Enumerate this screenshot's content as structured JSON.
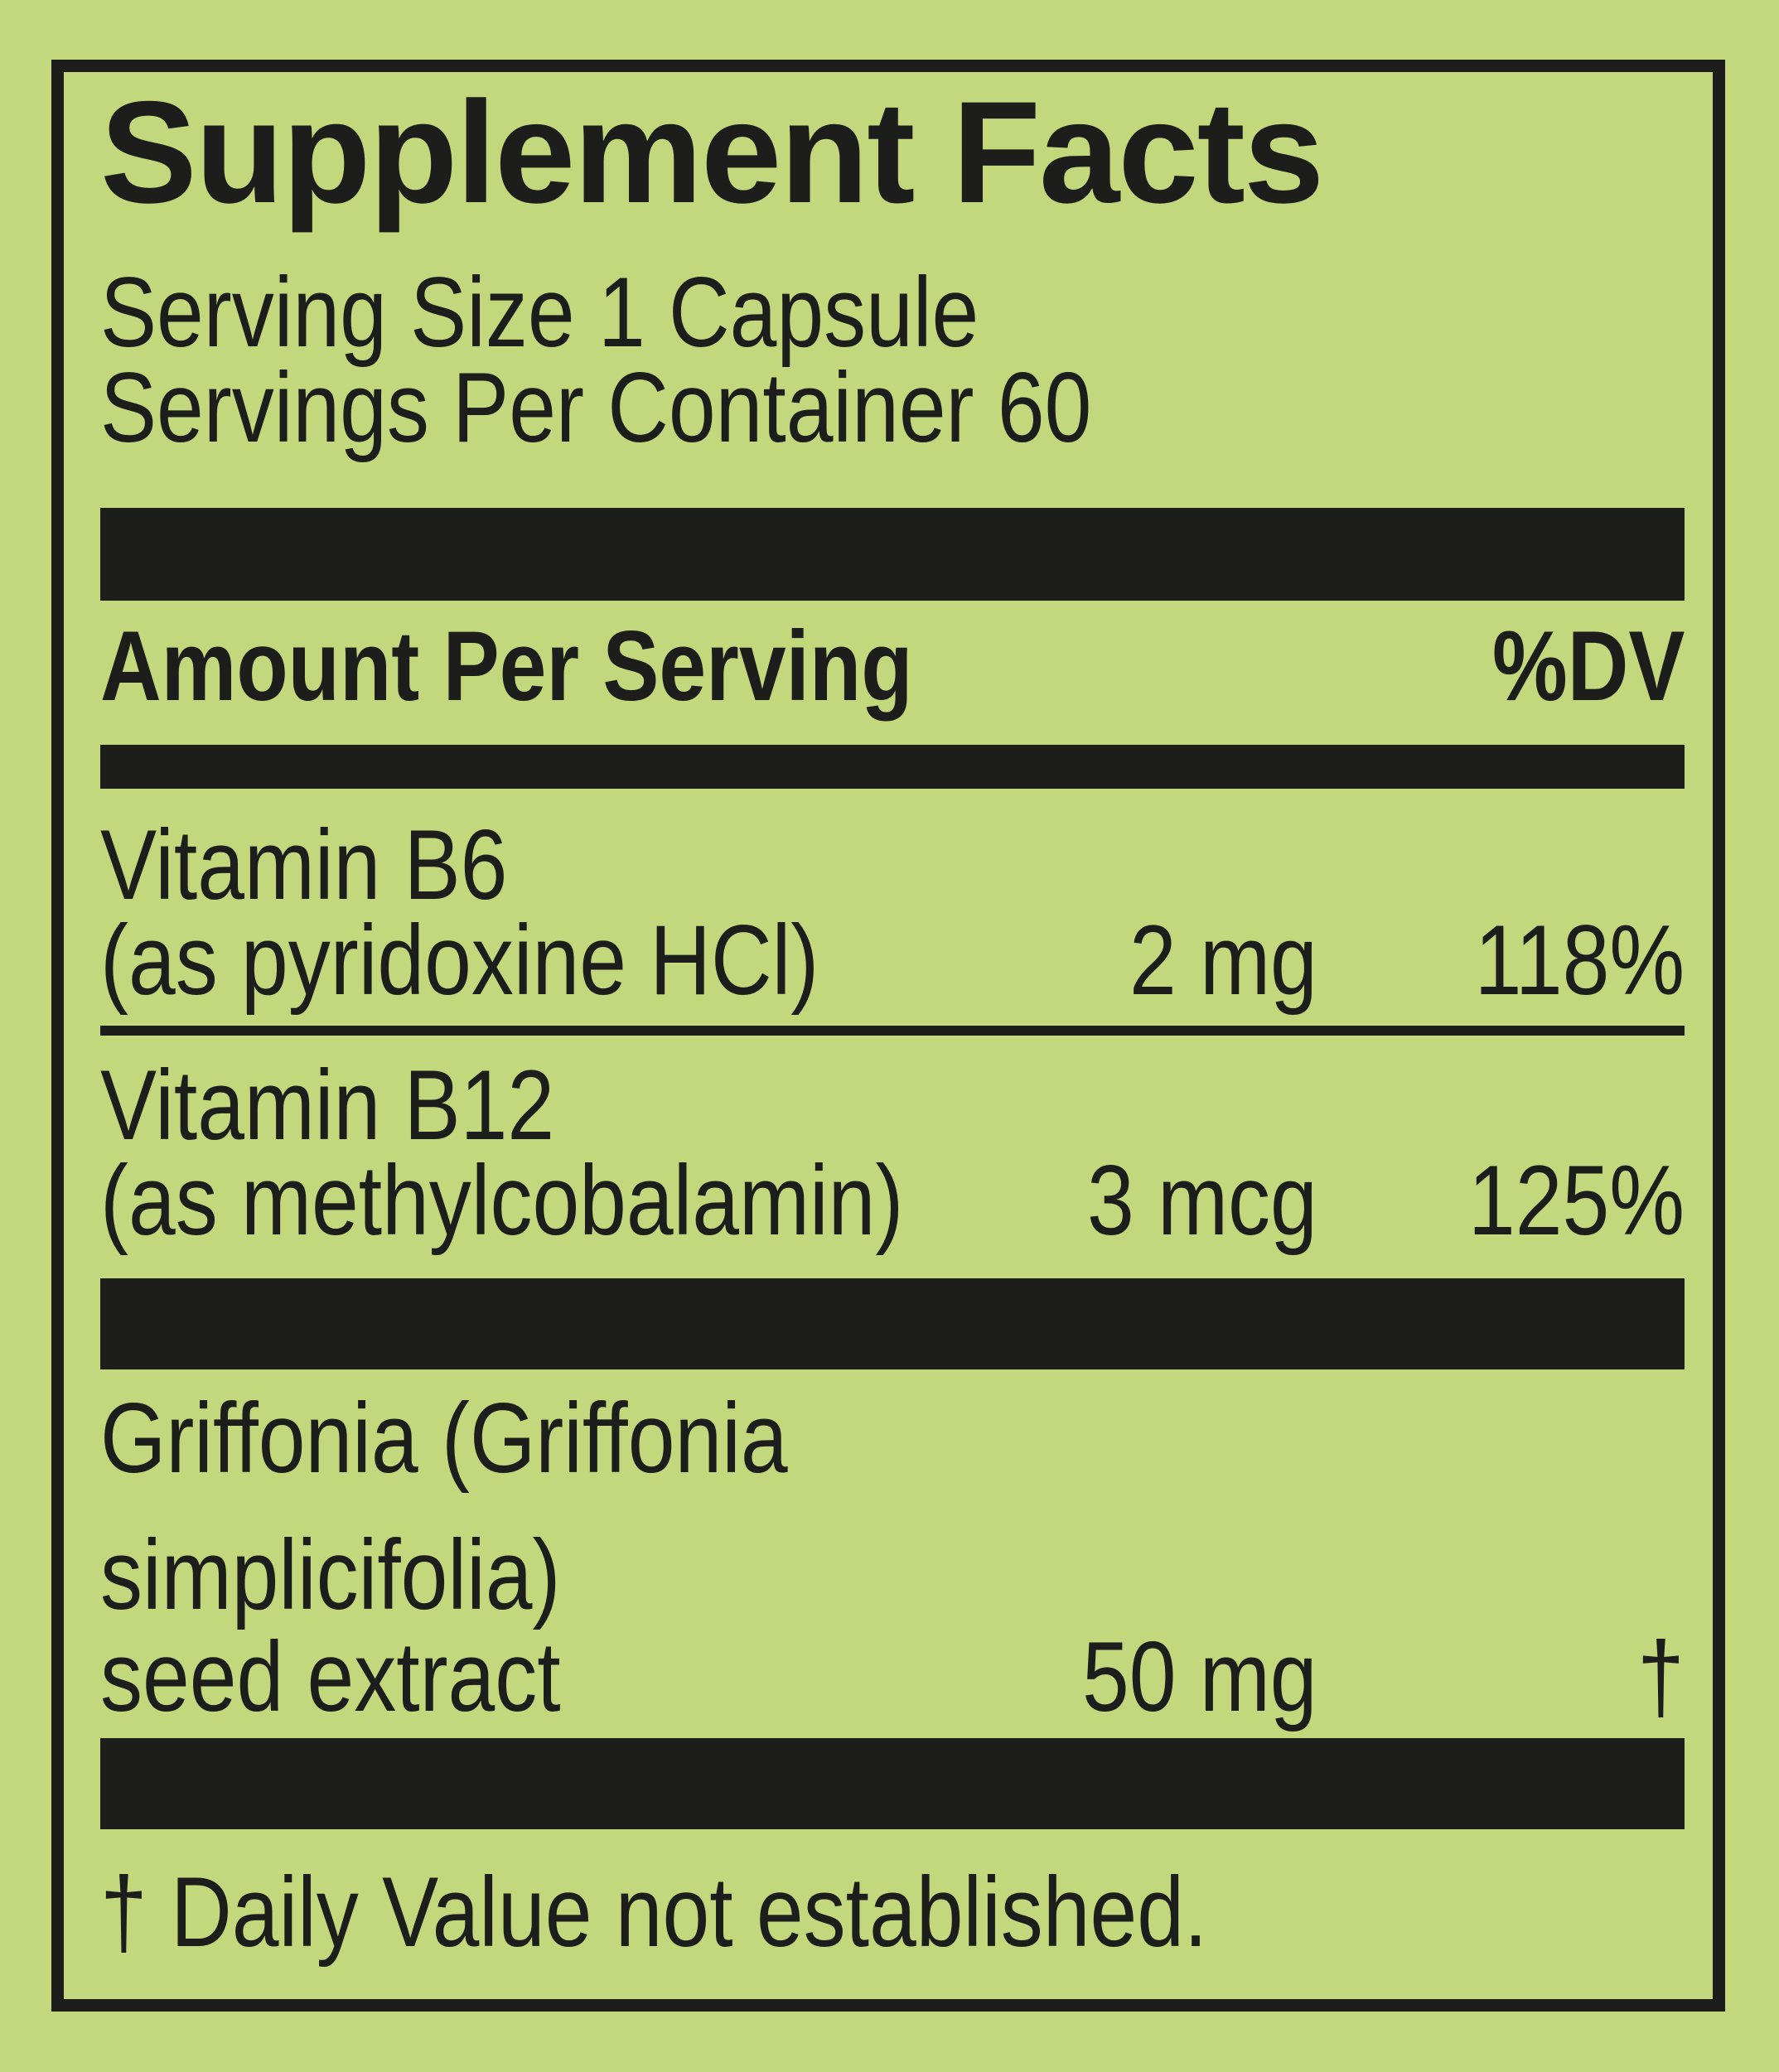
{
  "label": {
    "title": "Supplement Facts",
    "serving_size": "Serving Size 1 Capsule",
    "servings_per_container": "Servings Per Container 60",
    "header": {
      "amount_per_serving": "Amount Per Serving",
      "dv": "%DV"
    },
    "nutrients": [
      {
        "name": "Vitamin B6",
        "form": "(as pyridoxine HCl)",
        "amount": "2 mg",
        "dv": "118%"
      },
      {
        "name": "Vitamin B12",
        "form": "(as methylcobalamin)",
        "amount": "3 mcg",
        "dv": "125%"
      },
      {
        "name_line1": "Griffonia (Griffonia",
        "name_line2": "simplicifolia)",
        "name_line3": "seed extract",
        "amount": "50 mg",
        "dv": "†"
      }
    ],
    "footnote": "† Daily Value not established.",
    "colors": {
      "background": "#c3d87c",
      "ink": "#1d1d1b"
    }
  }
}
